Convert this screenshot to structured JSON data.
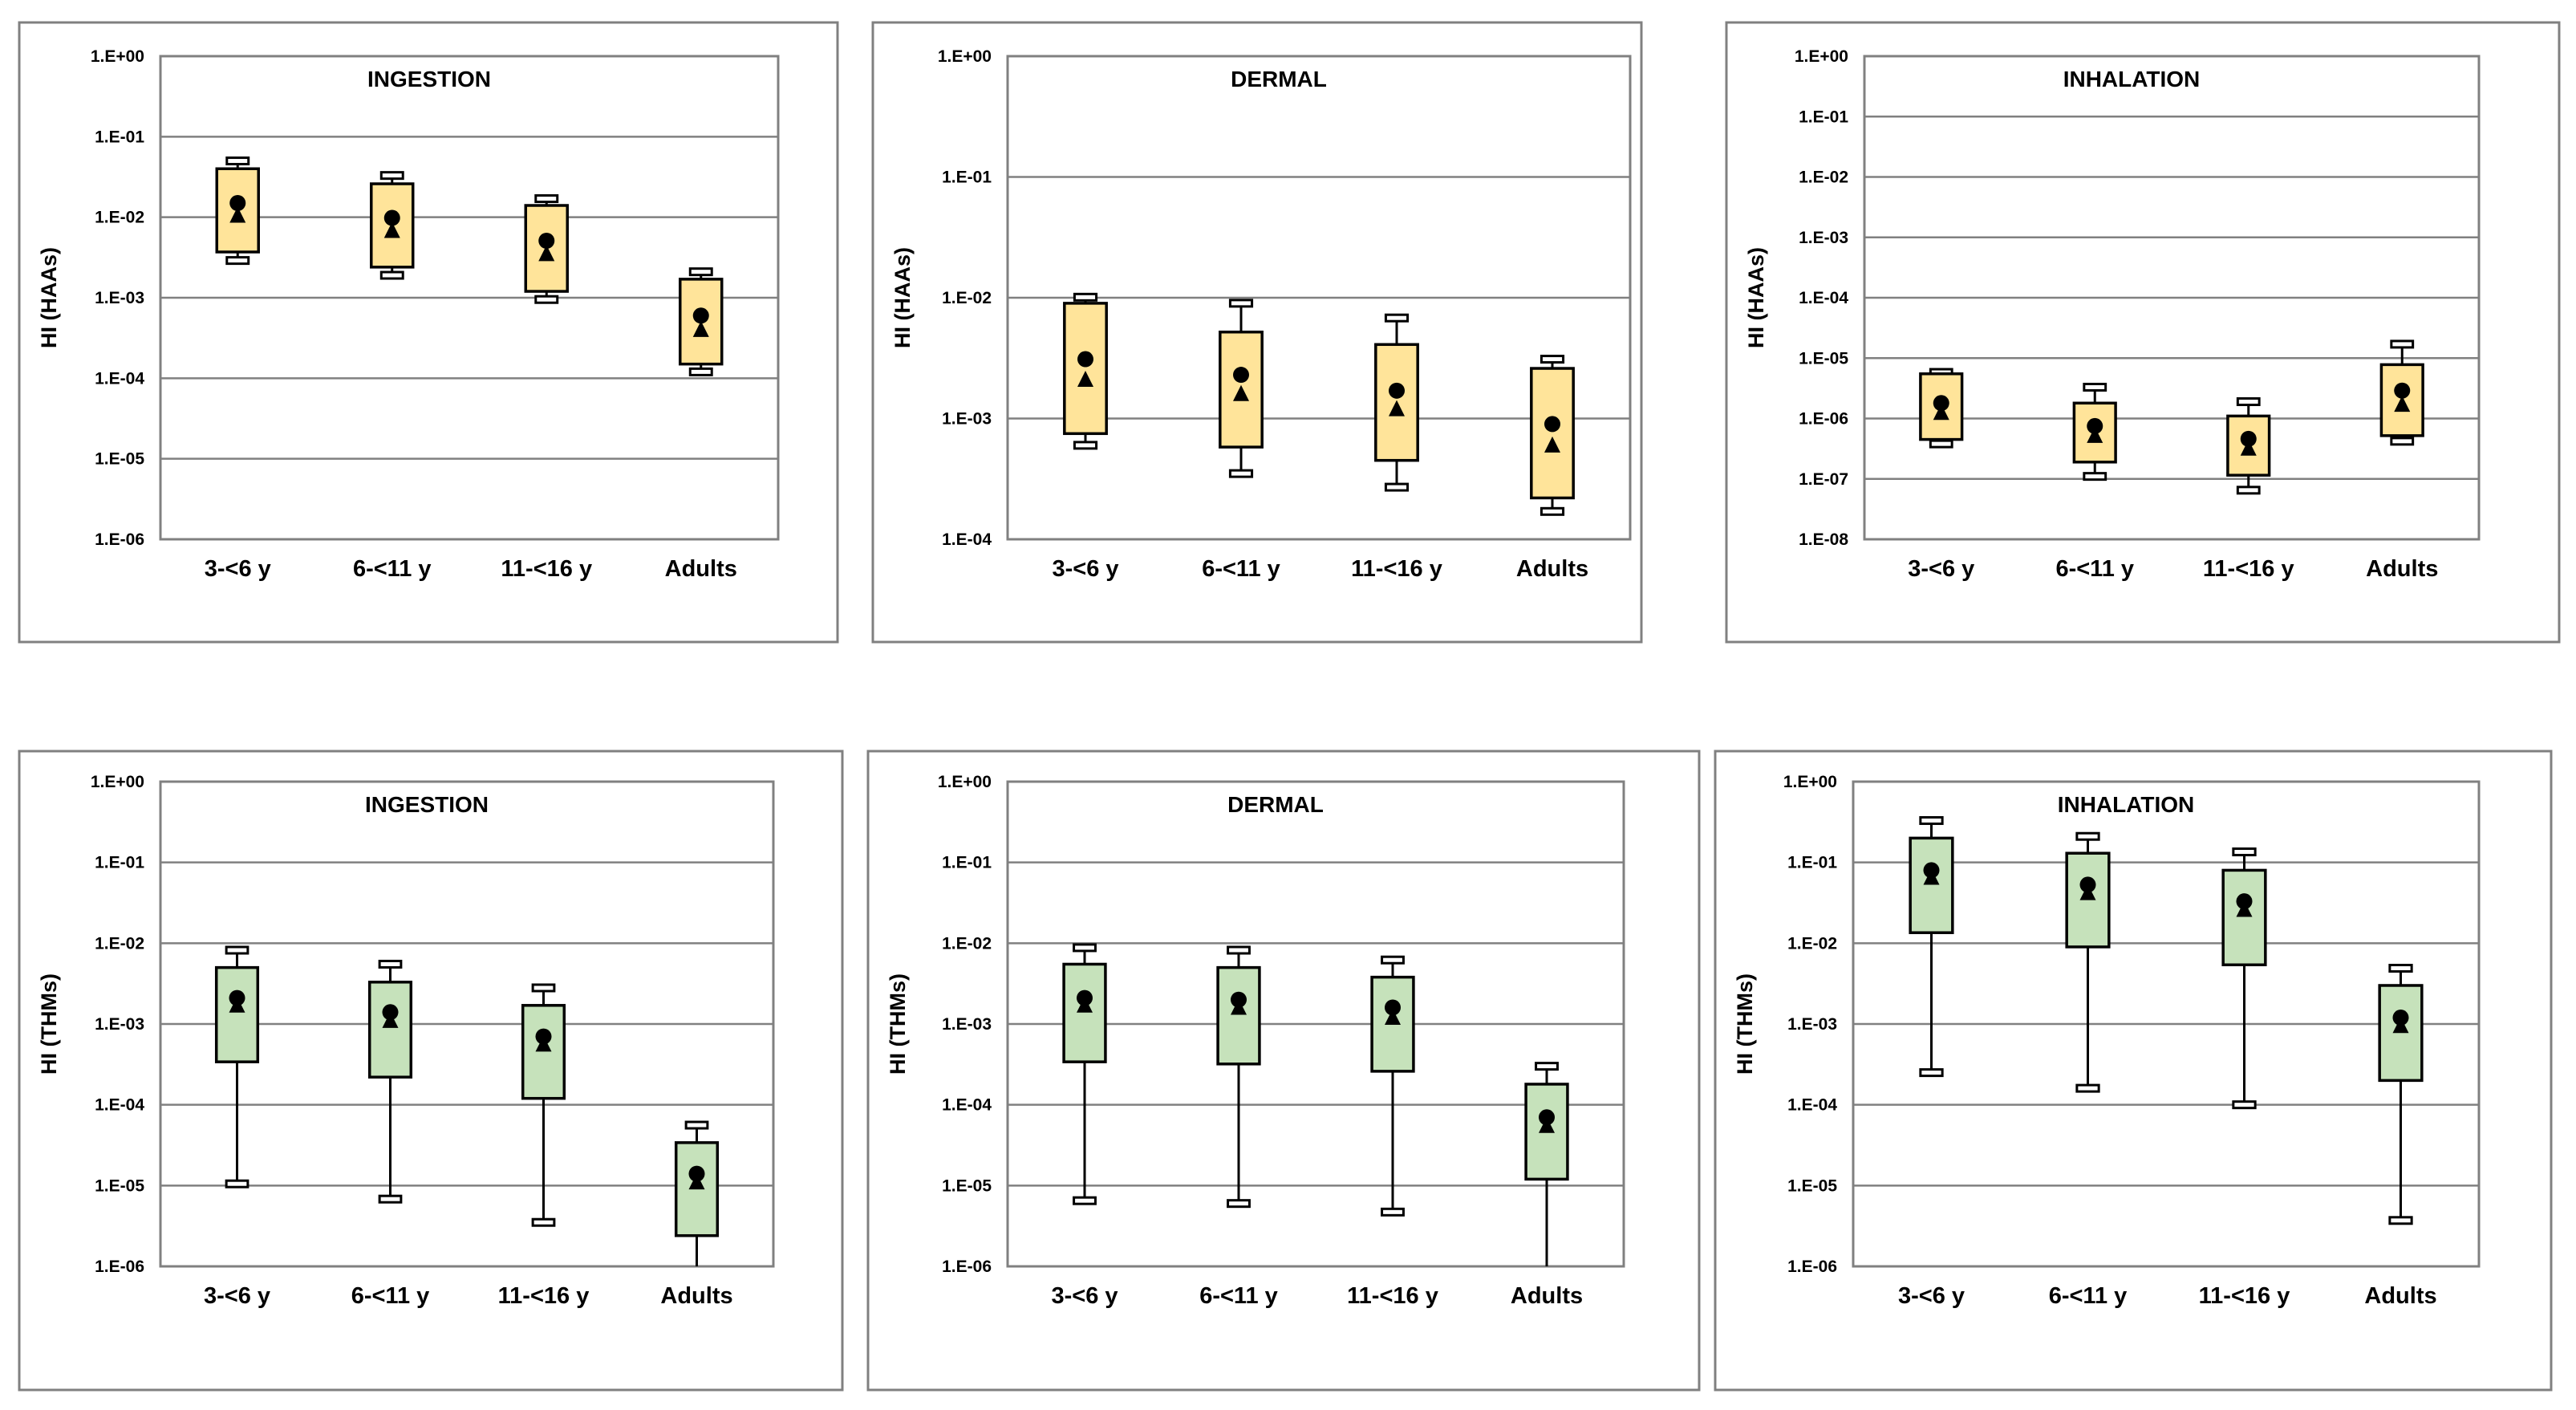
{
  "colors": {
    "haas_box": "#FFE49A",
    "thms_box": "#C6E2BB",
    "grid": "#808080",
    "frame": "#808080"
  },
  "chart_data": [
    {
      "type": "box",
      "title": "INGESTION",
      "ylabel": "HI (HAAs)",
      "yscale": "log",
      "ylim": [
        1e-06,
        1
      ],
      "yticks": [
        "1.E+00",
        "1.E-01",
        "1.E-02",
        "1.E-03",
        "1.E-04",
        "1.E-05",
        "1.E-06"
      ],
      "categories": [
        "3-<6 y",
        "6-<11 y",
        "11-<16 y",
        "Adults"
      ],
      "boxes": [
        {
          "min": 0.0029,
          "q1": 0.0037,
          "q3": 0.04,
          "max": 0.05,
          "mean": 0.015,
          "median": 0.0105
        },
        {
          "min": 0.0019,
          "q1": 0.0024,
          "q3": 0.026,
          "max": 0.033,
          "mean": 0.0098,
          "median": 0.0068
        },
        {
          "min": 0.00095,
          "q1": 0.0012,
          "q3": 0.014,
          "max": 0.017,
          "mean": 0.0051,
          "median": 0.0035
        },
        {
          "min": 0.00012,
          "q1": 0.00015,
          "q3": 0.0017,
          "max": 0.0021,
          "mean": 0.0006,
          "median": 0.0004
        }
      ]
    },
    {
      "type": "box",
      "title": "DERMAL",
      "ylabel": "HI (HAAs)",
      "yscale": "log",
      "ylim": [
        0.0001,
        1
      ],
      "yticks": [
        "1.E+00",
        "1.E-01",
        "1.E-02",
        "1.E-03",
        "1.E-04"
      ],
      "categories": [
        "3-<6 y",
        "6-<11 y",
        "11-<16 y",
        "Adults"
      ],
      "boxes": [
        {
          "min": 0.0006,
          "q1": 0.00075,
          "q3": 0.009,
          "max": 0.0101,
          "mean": 0.0031,
          "median": 0.0021
        },
        {
          "min": 0.00035,
          "q1": 0.00058,
          "q3": 0.0052,
          "max": 0.009,
          "mean": 0.0023,
          "median": 0.0016
        },
        {
          "min": 0.00027,
          "q1": 0.00045,
          "q3": 0.0041,
          "max": 0.0068,
          "mean": 0.0017,
          "median": 0.0012
        },
        {
          "min": 0.00017,
          "q1": 0.00022,
          "q3": 0.0026,
          "max": 0.0031,
          "mean": 0.0009,
          "median": 0.0006
        }
      ]
    },
    {
      "type": "box",
      "title": "INHALATION",
      "ylabel": "HI (HAAs)",
      "yscale": "log",
      "ylim": [
        1e-08,
        1
      ],
      "yticks": [
        "1.E+00",
        "1.E-01",
        "1.E-02",
        "1.E-03",
        "1.E-04",
        "1.E-05",
        "1.E-06",
        "1.E-07",
        "1.E-08"
      ],
      "categories": [
        "3-<6 y",
        "6-<11 y",
        "11-<16 y",
        "Adults"
      ],
      "boxes": [
        {
          "min": 3.8e-07,
          "q1": 4.5e-07,
          "q3": 5.5e-06,
          "max": 5.8e-06,
          "mean": 1.8e-06,
          "median": 1.25e-06
        },
        {
          "min": 1.1e-07,
          "q1": 1.9e-07,
          "q3": 1.8e-06,
          "max": 3.3e-06,
          "mean": 7.5e-07,
          "median": 5.2e-07
        },
        {
          "min": 6.5e-08,
          "q1": 1.15e-07,
          "q3": 1.1e-06,
          "max": 1.9e-06,
          "mean": 4.6e-07,
          "median": 3.2e-07
        },
        {
          "min": 4.2e-07,
          "q1": 5.2e-07,
          "q3": 7.8e-06,
          "max": 1.7e-05,
          "mean": 2.9e-06,
          "median": 1.7e-06
        }
      ]
    },
    {
      "type": "box",
      "title": "INGESTION",
      "ylabel": "HI (THMs)",
      "yscale": "log",
      "ylim": [
        1e-06,
        1
      ],
      "yticks": [
        "1.E+00",
        "1.E-01",
        "1.E-02",
        "1.E-03",
        "1.E-04",
        "1.E-05",
        "1.E-06"
      ],
      "categories": [
        "3-<6 y",
        "6-<11 y",
        "11-<16 y",
        "Adults"
      ],
      "boxes": [
        {
          "min": 1.05e-05,
          "q1": 0.00034,
          "q3": 0.005,
          "max": 0.0082,
          "mean": 0.0021,
          "median": 0.0017
        },
        {
          "min": 6.8e-06,
          "q1": 0.00022,
          "q3": 0.0033,
          "max": 0.0055,
          "mean": 0.0014,
          "median": 0.0011
        },
        {
          "min": 3.5e-06,
          "q1": 0.00012,
          "q3": 0.0017,
          "max": 0.0028,
          "mean": 0.0007,
          "median": 0.00056
        },
        {
          "min": 1e-06,
          "q1": 2.4e-06,
          "q3": 3.4e-05,
          "max": 5.6e-05,
          "mean": 1.4e-05,
          "median": 1.1e-05
        }
      ]
    },
    {
      "type": "box",
      "title": "DERMAL",
      "ylabel": "HI (THMs)",
      "yscale": "log",
      "ylim": [
        1e-06,
        1
      ],
      "yticks": [
        "1.E+00",
        "1.E-01",
        "1.E-02",
        "1.E-03",
        "1.E-04",
        "1.E-05",
        "1.E-06"
      ],
      "categories": [
        "3-<6 y",
        "6-<11 y",
        "11-<16 y",
        "Adults"
      ],
      "boxes": [
        {
          "min": 6.5e-06,
          "q1": 0.00034,
          "q3": 0.0055,
          "max": 0.0088,
          "mean": 0.0021,
          "median": 0.0017
        },
        {
          "min": 6e-06,
          "q1": 0.00032,
          "q3": 0.005,
          "max": 0.0082,
          "mean": 0.002,
          "median": 0.0016
        },
        {
          "min": 4.7e-06,
          "q1": 0.00026,
          "q3": 0.0038,
          "max": 0.0062,
          "mean": 0.0016,
          "median": 0.0012
        },
        {
          "min": 1e-06,
          "q1": 1.2e-05,
          "q3": 0.00018,
          "max": 0.0003,
          "mean": 7e-05,
          "median": 5.5e-05
        }
      ]
    },
    {
      "type": "box",
      "title": "INHALATION",
      "ylabel": "HI (THMs)",
      "yscale": "log",
      "ylim": [
        1e-06,
        1
      ],
      "yticks": [
        "1.E+00",
        "1.E-01",
        "1.E-02",
        "1.E-03",
        "1.E-04",
        "1.E-05",
        "1.E-06"
      ],
      "categories": [
        "3-<6 y",
        "6-<11 y",
        "11-<16 y",
        "Adults"
      ],
      "boxes": [
        {
          "min": 0.00025,
          "q1": 0.0135,
          "q3": 0.2,
          "max": 0.33,
          "mean": 0.08,
          "median": 0.065
        },
        {
          "min": 0.00016,
          "q1": 0.009,
          "q3": 0.13,
          "max": 0.21,
          "mean": 0.053,
          "median": 0.042
        },
        {
          "min": 0.0001,
          "q1": 0.0054,
          "q3": 0.08,
          "max": 0.135,
          "mean": 0.033,
          "median": 0.026
        },
        {
          "min": 3.7e-06,
          "q1": 0.0002,
          "q3": 0.003,
          "max": 0.0049,
          "mean": 0.0012,
          "median": 0.00095
        }
      ]
    }
  ]
}
